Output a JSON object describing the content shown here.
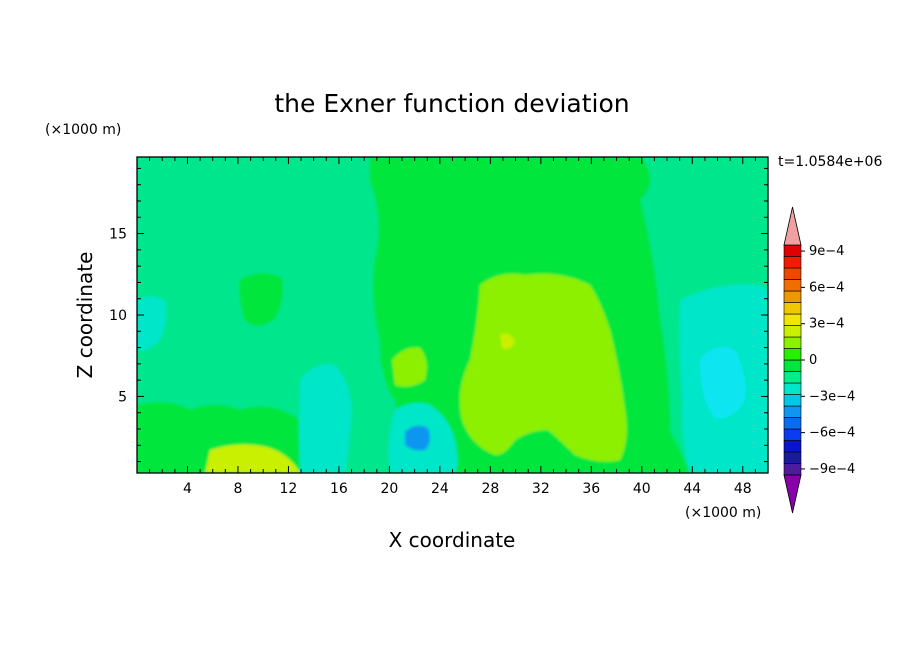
{
  "chart_data": {
    "type": "heatmap",
    "title": "the Exner function deviation",
    "xlabel": "X coordinate",
    "ylabel": "Z coordinate",
    "x_unit": "(×1000 m)",
    "y_unit": "(×1000 m)",
    "time_label": "t=1.0584e+06",
    "xlim": [
      0,
      50
    ],
    "ylim": [
      0.3,
      19.7
    ],
    "x_ticks": [
      4,
      8,
      12,
      16,
      20,
      24,
      28,
      32,
      36,
      40,
      44,
      48
    ],
    "x_tick_labels": [
      "4",
      "8",
      "12",
      "16",
      "20",
      "24",
      "28",
      "32",
      "36",
      "40",
      "44",
      "48"
    ],
    "y_ticks": [
      5,
      10,
      15
    ],
    "y_tick_labels": [
      "5",
      "10",
      "15"
    ],
    "colorbar": {
      "levels": [
        -0.00105,
        -0.00095,
        -0.00085,
        -0.00075,
        -0.00065,
        -0.00055,
        -0.00045,
        -0.00035,
        -0.00025,
        -0.00015,
        -5e-05,
        5e-05,
        0.00015,
        0.00025,
        0.00035,
        0.00045,
        0.00055,
        0.00065,
        0.00075,
        0.00085,
        0.00095,
        0.00105
      ],
      "colors": [
        "#8800aa",
        "#4b1c9c",
        "#1a1aa0",
        "#0a14c8",
        "#0a3cf0",
        "#0a6cf0",
        "#0e96f0",
        "#00c8e6",
        "#00e6c8",
        "#00ee8c",
        "#00e63c",
        "#26f000",
        "#8cf000",
        "#c8f000",
        "#f0e600",
        "#f0c800",
        "#f09600",
        "#f06e00",
        "#f04600",
        "#f01e00",
        "#e00000",
        "#f0a0a0"
      ],
      "tick_values": [
        -0.0009,
        -0.0006,
        -0.0003,
        0,
        0.0003,
        0.0006,
        0.0009
      ],
      "tick_labels": [
        "−9e−4",
        "−6e−4",
        "−3e−4",
        "0",
        "3e−4",
        "6e−4",
        "9e−4"
      ]
    },
    "grid": false,
    "regions": [
      {
        "level": "0",
        "desc": "upper middle core",
        "x": 22,
        "z": 14
      },
      {
        "level": "0",
        "desc": "left mid",
        "x": 10,
        "z": 11
      },
      {
        "level": "0",
        "desc": "left bottom",
        "x": 5,
        "z": 2
      },
      {
        "level": "3e-4",
        "desc": "right-center plume",
        "x": 32,
        "z": 7
      },
      {
        "level": "3e-4",
        "desc": "bottom left near x=10",
        "x": 10,
        "z": 1
      },
      {
        "level": "-3e-4",
        "desc": "left edge",
        "x": 1,
        "z": 10
      },
      {
        "level": "-3e-4",
        "desc": "right edge",
        "x": 47,
        "z": 6
      },
      {
        "level": "-3e-4",
        "desc": "near x=15",
        "x": 15,
        "z": 3
      },
      {
        "level": "-5e-4",
        "desc": "center dip near x=22",
        "x": 22,
        "z": 2.3
      },
      {
        "level": "-4e-4",
        "desc": "right dip near x=46",
        "x": 46,
        "z": 5.5
      }
    ]
  }
}
